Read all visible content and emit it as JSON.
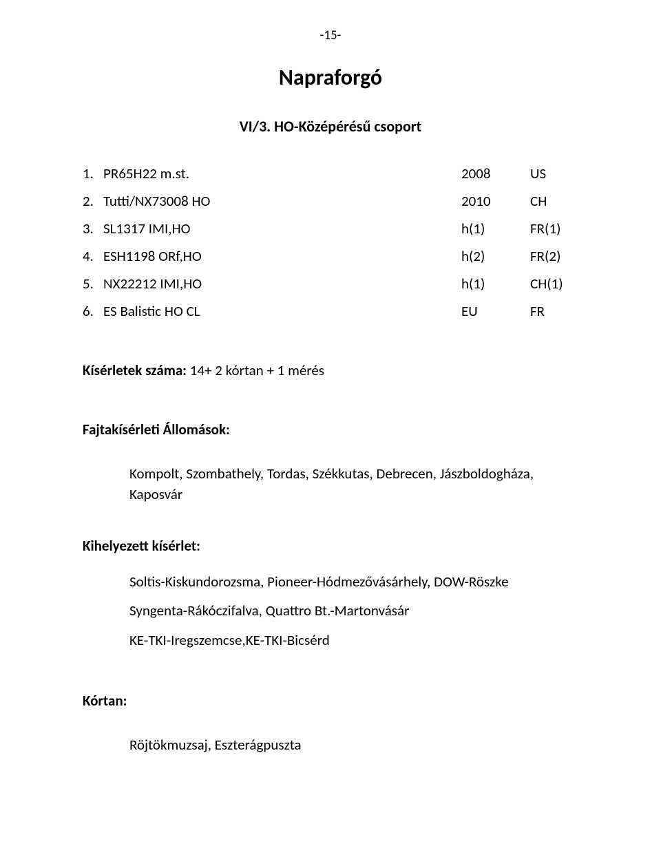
{
  "page_number": "-15-",
  "title": "Napraforgó",
  "subtitle": "VI/3. HO-Középérésű csoport",
  "rows": [
    {
      "num": "1.",
      "name": "PR65H22 m.st.",
      "colA": "2008",
      "colB": "US"
    },
    {
      "num": "2.",
      "name": "Tutti/NX73008 HO",
      "colA": "2010",
      "colB": "CH"
    },
    {
      "num": "3.",
      "name": "SL1317 IMI,HO",
      "colA": "h(1)",
      "colB": "FR(1)"
    },
    {
      "num": "4.",
      "name": "ESH1198 ORf,HO",
      "colA": "h(2)",
      "colB": "FR(2)"
    },
    {
      "num": "5.",
      "name": "NX22212 IMI,HO",
      "colA": "h(1)",
      "colB": "CH(1)"
    },
    {
      "num": "6.",
      "name": "ES Balistic HO CL",
      "colA": "EU",
      "colB": "FR"
    }
  ],
  "kiserletek_label": "Kísérletek száma:",
  "kiserletek_value": "  14+ 2 kórtan + 1 mérés",
  "fajta_heading": "Fajtakísérleti Állomások:",
  "fajta_body": "Kompolt, Szombathely, Tordas, Székkutas, Debrecen, Jászboldogháza, Kaposvár",
  "kihely_heading": "Kihelyezett kísérlet:",
  "kihely_line1": "Soltis-Kiskundorozsma,  Pioneer-Hódmezővásárhely, DOW-Röszke",
  "kihely_line2": "Syngenta-Rákóczifalva, Quattro Bt.-Martonvásár",
  "kihely_line3": "KE-TKI-Iregszemcse,KE-TKI-Bicsérd",
  "kortan_heading": "Kórtan:",
  "kortan_body": "Röjtökmuzsaj, Eszterágpuszta"
}
